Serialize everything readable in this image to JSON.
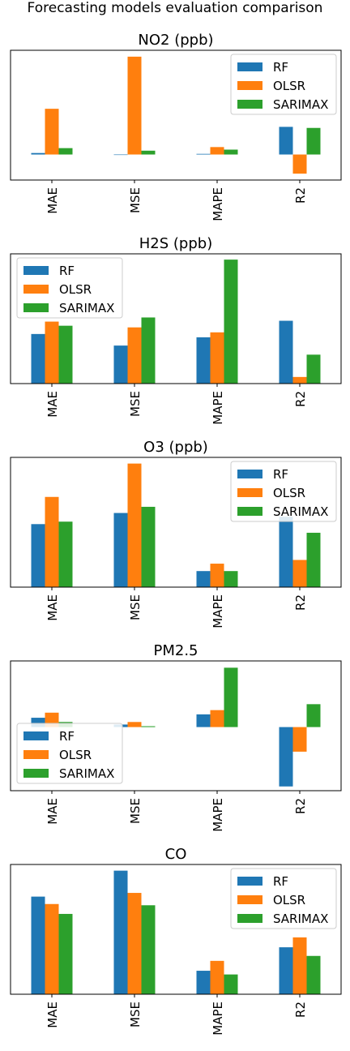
{
  "suptitle": "Forecasting models evaluation comparison",
  "colors": {
    "RF": "#1f77b4",
    "OLSR": "#ff7f0e",
    "SARIMAX": "#2ca02c"
  },
  "chart_data": [
    {
      "type": "bar",
      "title": "NO2 (ppb)",
      "categories": [
        "MAE",
        "MSE",
        "MAPE",
        "R2"
      ],
      "series": [
        {
          "name": "RF",
          "values": [
            0.7,
            0.0,
            0.3,
            13.0
          ]
        },
        {
          "name": "OLSR",
          "values": [
            21.5,
            46.0,
            3.5,
            -9.0
          ]
        },
        {
          "name": "SARIMAX",
          "values": [
            3.0,
            1.8,
            2.3,
            12.5
          ]
        }
      ],
      "ylim": [
        -12,
        49
      ],
      "legend": "top-right"
    },
    {
      "type": "bar",
      "title": "H2S (ppb)",
      "categories": [
        "MAE",
        "MSE",
        "MAPE",
        "R2"
      ],
      "series": [
        {
          "name": "RF",
          "values": [
            0.6,
            0.46,
            0.56,
            0.76
          ]
        },
        {
          "name": "OLSR",
          "values": [
            0.75,
            0.68,
            0.62,
            0.08
          ]
        },
        {
          "name": "SARIMAX",
          "values": [
            0.7,
            0.8,
            1.5,
            0.35
          ]
        }
      ],
      "ylim": [
        0,
        1.57
      ],
      "legend": "top-left"
    },
    {
      "type": "bar",
      "title": "O3 (ppb)",
      "categories": [
        "MAE",
        "MSE",
        "MAPE",
        "R2"
      ],
      "series": [
        {
          "name": "RF",
          "values": [
            0.51,
            0.6,
            0.13,
            0.57
          ]
        },
        {
          "name": "OLSR",
          "values": [
            0.73,
            1.0,
            0.19,
            0.22
          ]
        },
        {
          "name": "SARIMAX",
          "values": [
            0.53,
            0.65,
            0.13,
            0.44
          ]
        }
      ],
      "ylim": [
        0,
        1.05
      ],
      "legend": "top-right"
    },
    {
      "type": "bar",
      "title": "PM2.5",
      "categories": [
        "MAE",
        "MSE",
        "MAPE",
        "R2"
      ],
      "series": [
        {
          "name": "RF",
          "values": [
            0.11,
            0.03,
            0.15,
            -0.7
          ]
        },
        {
          "name": "OLSR",
          "values": [
            0.17,
            0.06,
            0.2,
            -0.29
          ]
        },
        {
          "name": "SARIMAX",
          "values": [
            0.06,
            0.01,
            0.7,
            0.27
          ]
        }
      ],
      "ylim": [
        -0.75,
        0.78
      ],
      "legend": "center-left"
    },
    {
      "type": "bar",
      "title": "CO",
      "categories": [
        "MAE",
        "MSE",
        "MAPE",
        "R2"
      ],
      "series": [
        {
          "name": "RF",
          "values": [
            0.79,
            1.0,
            0.19,
            0.38
          ]
        },
        {
          "name": "OLSR",
          "values": [
            0.73,
            0.82,
            0.27,
            0.46
          ]
        },
        {
          "name": "SARIMAX",
          "values": [
            0.65,
            0.72,
            0.16,
            0.31
          ]
        }
      ],
      "ylim": [
        0,
        1.05
      ],
      "legend": "top-right"
    }
  ]
}
